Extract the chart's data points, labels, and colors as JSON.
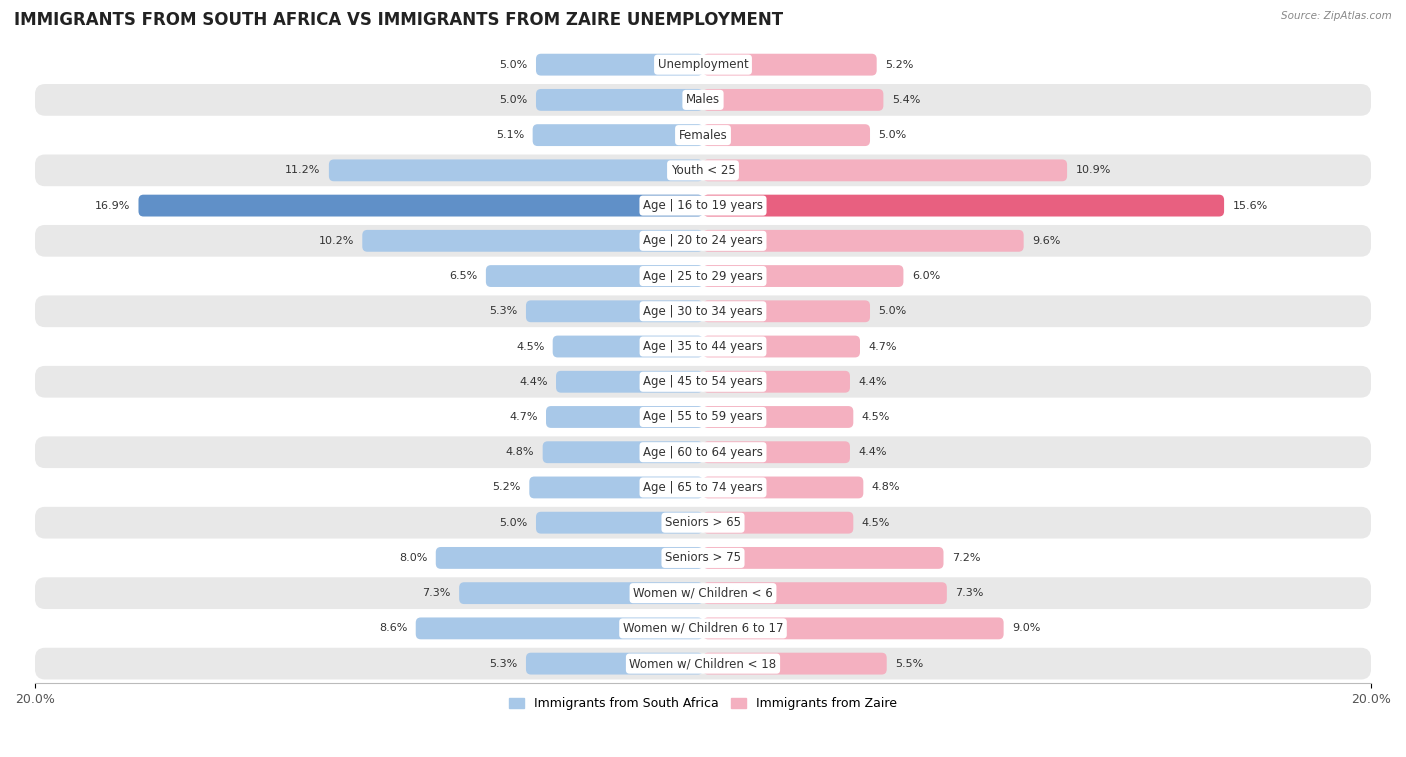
{
  "title": "IMMIGRANTS FROM SOUTH AFRICA VS IMMIGRANTS FROM ZAIRE UNEMPLOYMENT",
  "source": "Source: ZipAtlas.com",
  "categories": [
    "Unemployment",
    "Males",
    "Females",
    "Youth < 25",
    "Age | 16 to 19 years",
    "Age | 20 to 24 years",
    "Age | 25 to 29 years",
    "Age | 30 to 34 years",
    "Age | 35 to 44 years",
    "Age | 45 to 54 years",
    "Age | 55 to 59 years",
    "Age | 60 to 64 years",
    "Age | 65 to 74 years",
    "Seniors > 65",
    "Seniors > 75",
    "Women w/ Children < 6",
    "Women w/ Children 6 to 17",
    "Women w/ Children < 18"
  ],
  "left_values": [
    5.0,
    5.0,
    5.1,
    11.2,
    16.9,
    10.2,
    6.5,
    5.3,
    4.5,
    4.4,
    4.7,
    4.8,
    5.2,
    5.0,
    8.0,
    7.3,
    8.6,
    5.3
  ],
  "right_values": [
    5.2,
    5.4,
    5.0,
    10.9,
    15.6,
    9.6,
    6.0,
    5.0,
    4.7,
    4.4,
    4.5,
    4.4,
    4.8,
    4.5,
    7.2,
    7.3,
    9.0,
    5.5
  ],
  "left_color": "#a8c8e8",
  "right_color": "#f4b0c0",
  "highlight_left_color": "#6090c8",
  "highlight_right_color": "#e86080",
  "highlight_row": 4,
  "axis_max": 20.0,
  "bg_color": "#ffffff",
  "row_bg_light": "#ffffff",
  "row_bg_dark": "#e8e8e8",
  "legend_left": "Immigrants from South Africa",
  "legend_right": "Immigrants from Zaire",
  "title_fontsize": 12,
  "label_fontsize": 8.5,
  "value_fontsize": 8.0,
  "tick_labels": [
    "20.0%",
    "20.0%"
  ]
}
